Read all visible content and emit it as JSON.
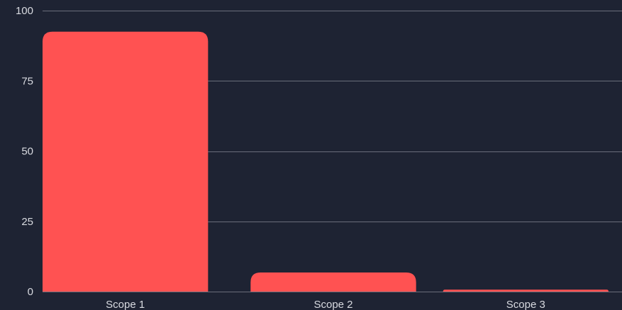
{
  "chart_data": {
    "type": "bar",
    "categories": [
      "Scope 1",
      "Scope 2",
      "Scope 3"
    ],
    "values": [
      92.5,
      6.8,
      0.7
    ],
    "ylim": [
      0,
      100
    ],
    "yticks": [
      0,
      25,
      50,
      75,
      100
    ],
    "grid": true,
    "bar_color": "#ff5252",
    "background_color": "#1e2333"
  }
}
